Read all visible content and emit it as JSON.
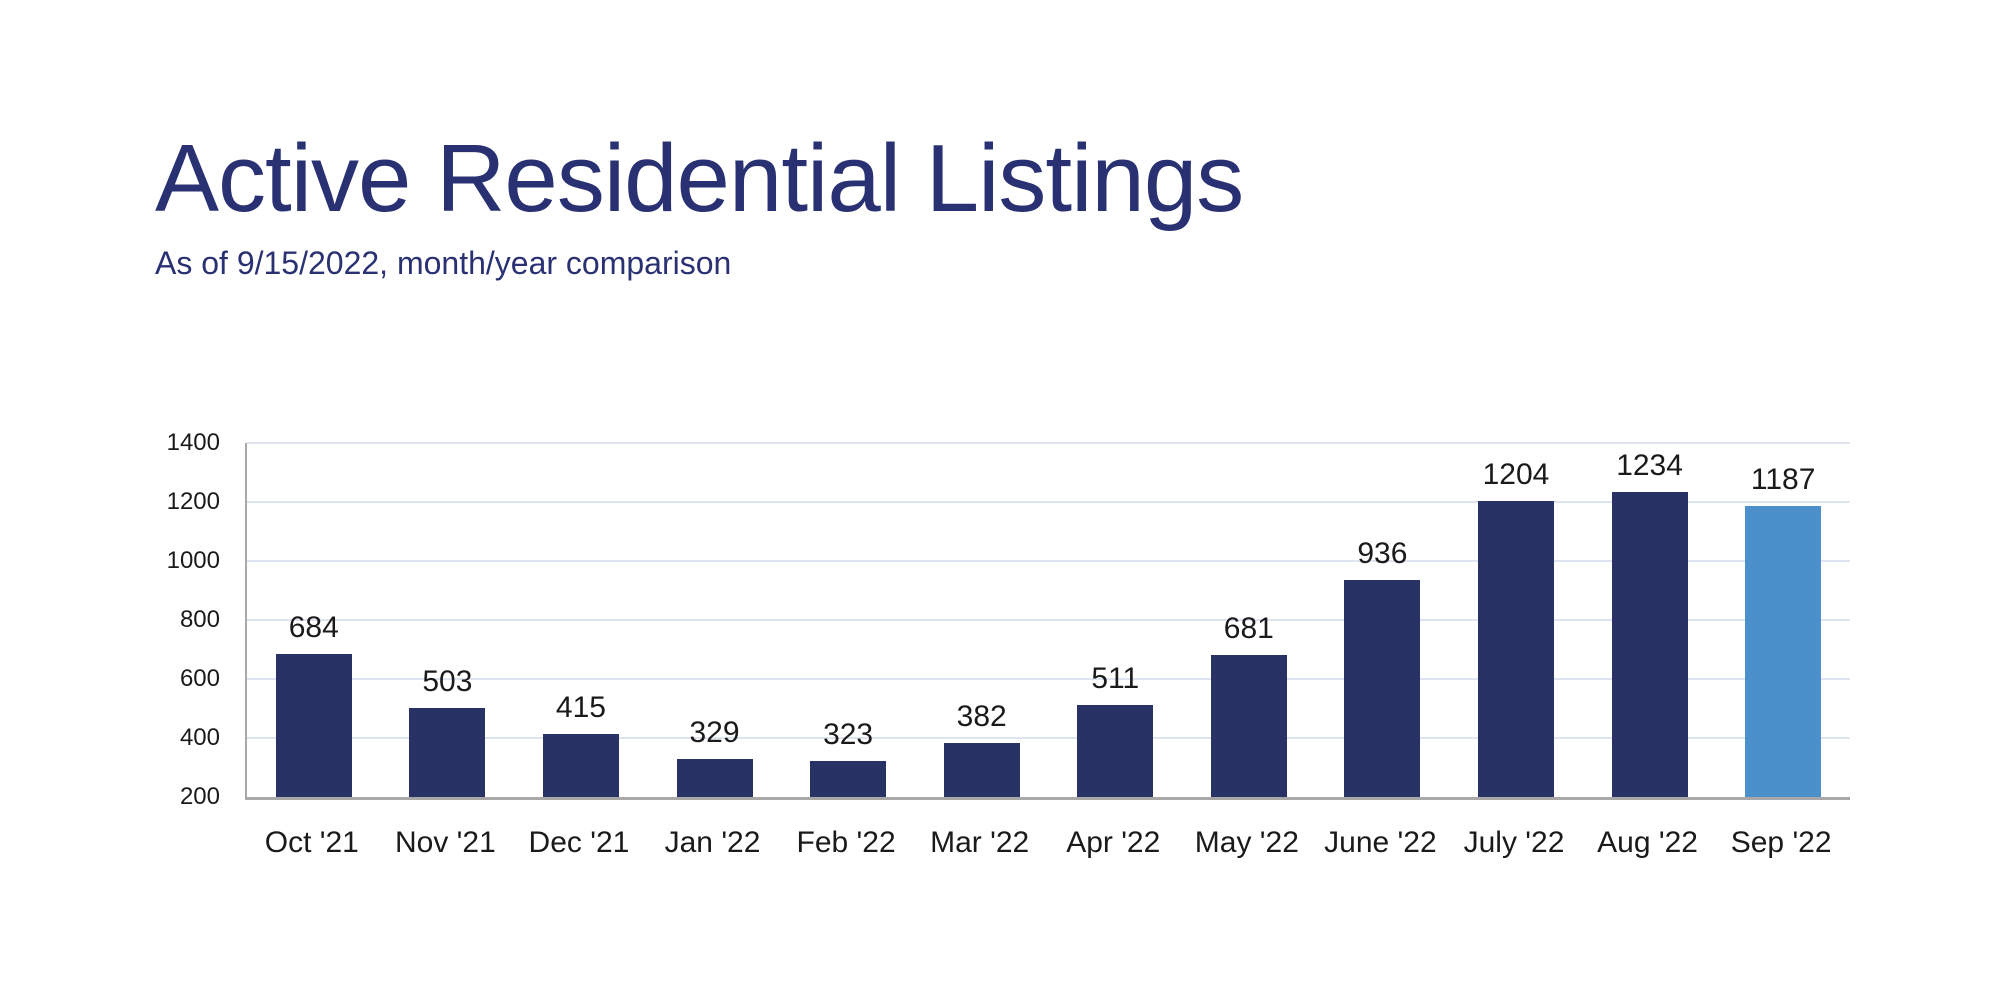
{
  "slide": {
    "background": "#ffffff"
  },
  "header": {
    "title": "Active Residential Listings",
    "subtitle": "As of 9/15/2022, month/year comparison"
  },
  "colors": {
    "title_text": "#2a3173",
    "bar_default": "#283264",
    "bar_highlight": "#4b90ca",
    "axis_line": "#a8a8a8",
    "gridline": "#dfe5f0",
    "label_text": "#1a1a1a"
  },
  "chart_data": {
    "type": "bar",
    "title": "Active Residential Listings",
    "subtitle": "As of 9/15/2022, month/year comparison",
    "categories": [
      "Oct '21",
      "Nov '21",
      "Dec '21",
      "Jan '22",
      "Feb '22",
      "Mar '22",
      "Apr '22",
      "May '22",
      "June '22",
      "July '22",
      "Aug '22",
      "Sep '22"
    ],
    "values": [
      684,
      503,
      415,
      329,
      323,
      382,
      511,
      681,
      936,
      1204,
      1234,
      1187
    ],
    "highlight_index": 11,
    "highlight_category": "Sep '22",
    "xlabel": "",
    "ylabel": "",
    "ylim": [
      200,
      1400
    ],
    "yticks": [
      200,
      400,
      600,
      800,
      1000,
      1200,
      1400
    ],
    "grid": true,
    "legend": false,
    "value_labels": true
  }
}
